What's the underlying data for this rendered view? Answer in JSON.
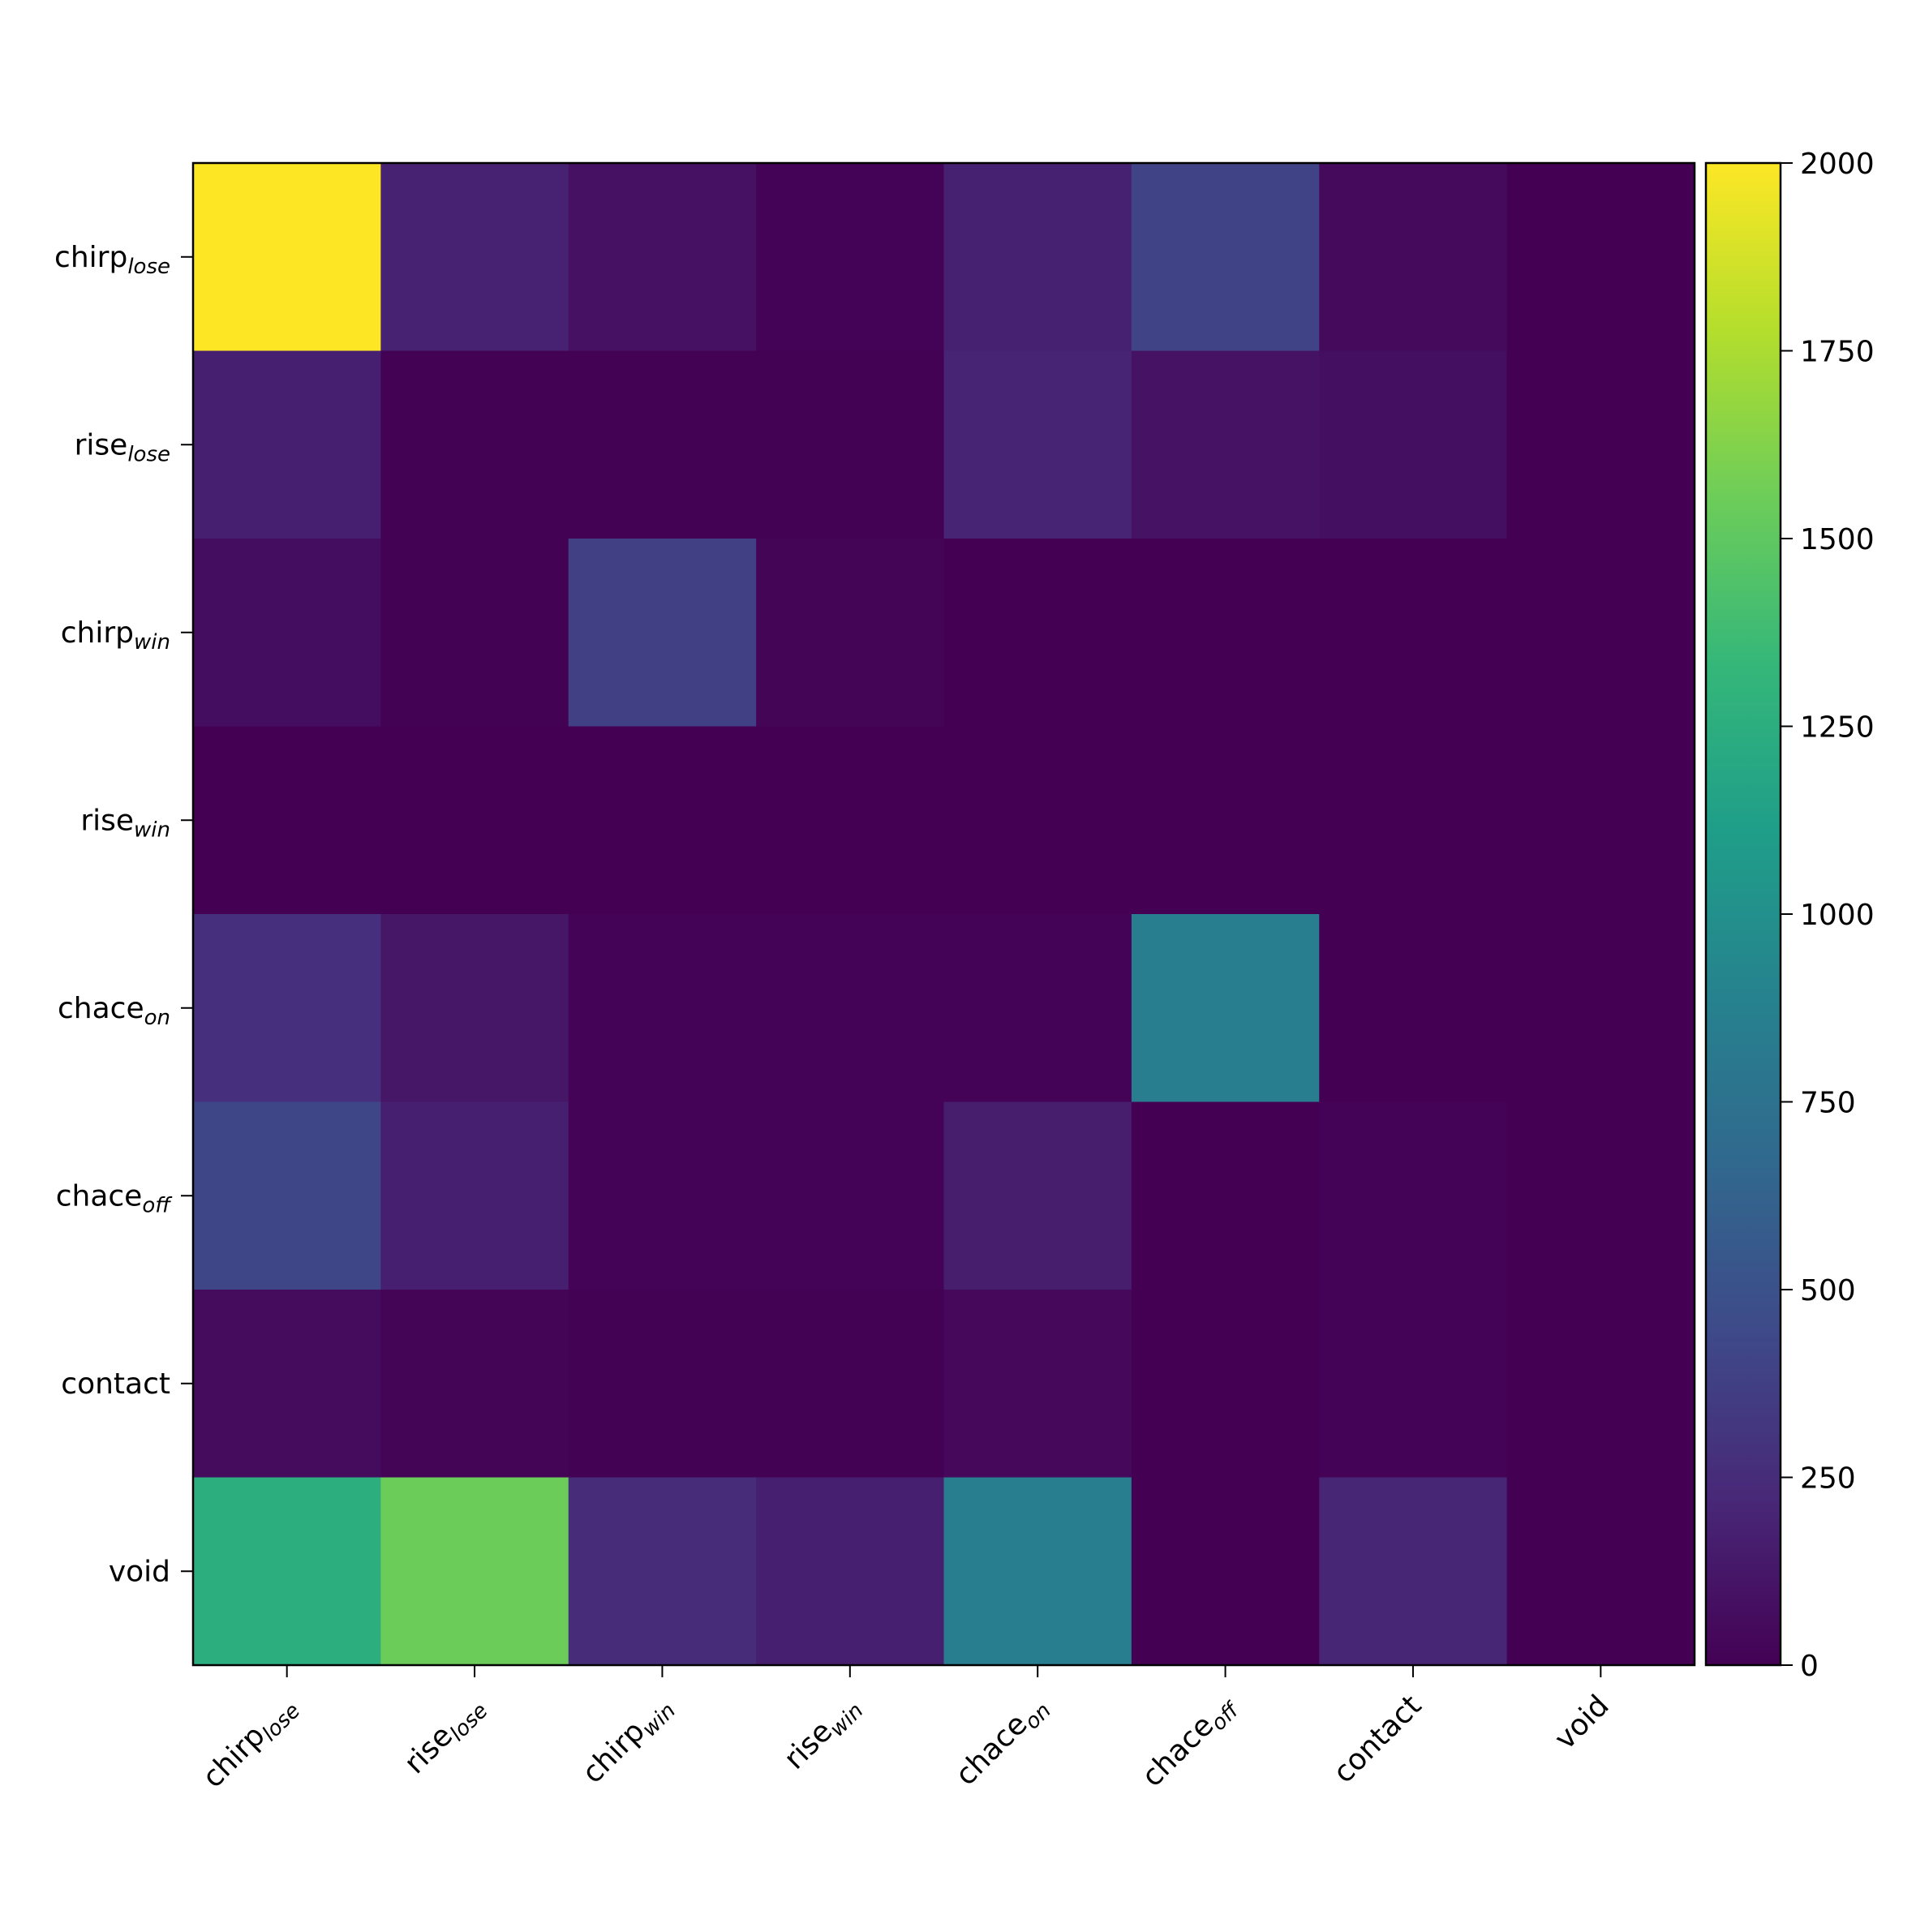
{
  "chart_data": {
    "type": "heatmap",
    "colormap": "viridis",
    "categories": [
      {
        "text": "chirp",
        "sub": "lose"
      },
      {
        "text": "rise",
        "sub": "lose"
      },
      {
        "text": "chirp",
        "sub": "win"
      },
      {
        "text": "rise",
        "sub": "win"
      },
      {
        "text": "chace",
        "sub": "on"
      },
      {
        "text": "chace",
        "sub": "off"
      },
      {
        "text": "contact"
      },
      {
        "text": "void"
      }
    ],
    "values": [
      [
        2000,
        190,
        90,
        10,
        180,
        400,
        50,
        0
      ],
      [
        170,
        5,
        5,
        5,
        200,
        100,
        80,
        0
      ],
      [
        70,
        5,
        380,
        20,
        0,
        0,
        0,
        0
      ],
      [
        0,
        0,
        0,
        0,
        0,
        0,
        0,
        0
      ],
      [
        270,
        120,
        10,
        10,
        10,
        850,
        0,
        0
      ],
      [
        420,
        170,
        10,
        10,
        160,
        0,
        10,
        0
      ],
      [
        60,
        20,
        5,
        5,
        40,
        0,
        10,
        0
      ],
      [
        1250,
        1550,
        250,
        170,
        850,
        0,
        210,
        0
      ]
    ],
    "clim": [
      0,
      2000
    ],
    "cticks": [
      0,
      250,
      500,
      750,
      1000,
      1250,
      1500,
      1750,
      2000
    ]
  }
}
